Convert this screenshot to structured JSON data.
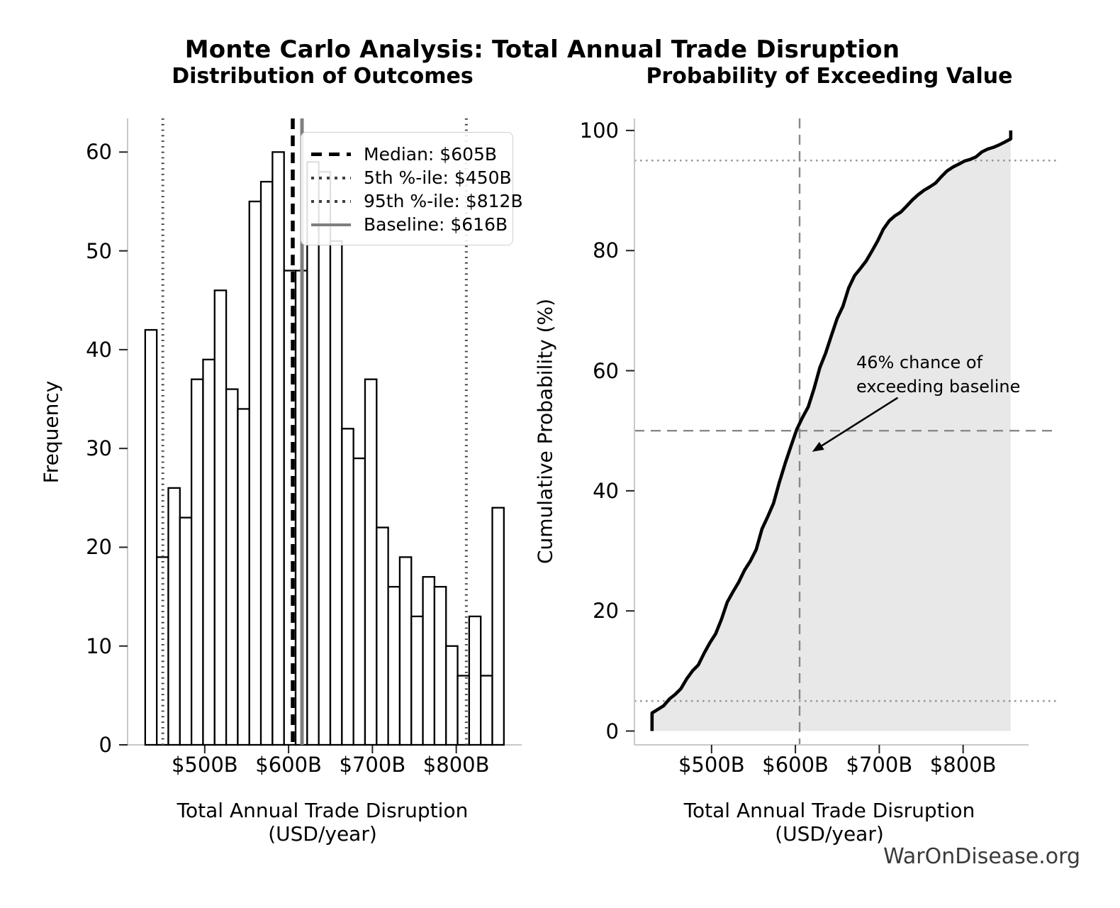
{
  "page": {
    "main_title": "Monte Carlo Analysis: Total Annual Trade Disruption",
    "watermark": "WarOnDisease.org"
  },
  "colors": {
    "bar_fill": "#ffffff",
    "bar_edge": "#000000",
    "curve": "#000000",
    "fill_under_curve": "#e8e8e8",
    "guide_gray": "#888888",
    "dotted_light": "#9a9a9a",
    "dotted_dark": "#3f3f3f",
    "baseline_gray": "#7f7f7f",
    "spine": "#c8c8c8",
    "tick": "#222222",
    "watermark": "#3a3a3a"
  },
  "chart_data": [
    {
      "type": "bar",
      "title": "Distribution of Outcomes",
      "xlabel": "Total Annual Trade Disruption (USD/year)",
      "ylabel": "Frequency",
      "xlim": [
        408,
        873
      ],
      "ylim": [
        0,
        63.4
      ],
      "grid": false,
      "xticks": {
        "values": [
          500,
          600,
          700,
          800
        ],
        "labels": [
          "$500B",
          "$600B",
          "$700B",
          "$800B"
        ]
      },
      "yticks": {
        "values": [
          0,
          10,
          20,
          30,
          40,
          50,
          60
        ],
        "labels": [
          "0",
          "10",
          "20",
          "30",
          "40",
          "50",
          "60"
        ]
      },
      "histogram": {
        "bin_start": 429,
        "bin_width": 13.8,
        "n_samples": 1000,
        "counts": [
          42,
          19,
          26,
          23,
          37,
          39,
          46,
          36,
          34,
          55,
          57,
          60,
          48,
          48,
          59,
          58,
          51,
          32,
          29,
          37,
          22,
          16,
          19,
          13,
          17,
          16,
          10,
          7,
          13,
          7,
          24
        ]
      },
      "ref_lines": [
        {
          "id": "median",
          "value": 605,
          "style": "dashed-black",
          "label": "Median: $605B"
        },
        {
          "id": "p5",
          "value": 450,
          "style": "dotted-gray",
          "label": "5th %-ile: $450B"
        },
        {
          "id": "p95",
          "value": 812,
          "style": "dotted-gray",
          "label": "95th %-ile: $812B"
        },
        {
          "id": "baseline",
          "value": 616,
          "style": "solid-gray",
          "label": "Baseline: $616B"
        }
      ],
      "legend_position": "upper right"
    },
    {
      "type": "line",
      "title": "Probability of Exceeding Value",
      "xlabel": "Total Annual Trade Disruption (USD/year)",
      "ylabel": "Cumulative Probability (%)",
      "xlim": [
        408,
        873
      ],
      "ylim": [
        -2.3,
        102
      ],
      "grid": false,
      "xticks": {
        "values": [
          500,
          600,
          700,
          800
        ],
        "labels": [
          "$500B",
          "$600B",
          "$700B",
          "$800B"
        ]
      },
      "yticks": {
        "values": [
          0,
          20,
          40,
          60,
          80,
          100
        ],
        "labels": [
          "0",
          "20",
          "40",
          "60",
          "80",
          "100"
        ]
      },
      "cdf": {
        "x_start": 429,
        "x_end": 856.8,
        "initial_jump_pct": 3.0,
        "edge_x": [
          442.8,
          456.6,
          470.4,
          484.2,
          498.0,
          511.8,
          525.6,
          539.4,
          553.2,
          567.0,
          580.8,
          594.6,
          608.4,
          622.2,
          636.0,
          649.8,
          663.6,
          677.4,
          691.2,
          705.0,
          718.8,
          732.6,
          746.4,
          760.2,
          774.0,
          787.8,
          801.6,
          815.4,
          829.2,
          843.0,
          856.8
        ],
        "cumulative_pct": [
          4.2,
          6.1,
          8.7,
          11.0,
          14.7,
          18.6,
          23.2,
          26.8,
          30.2,
          35.7,
          41.4,
          47.4,
          52.2,
          57.0,
          62.9,
          68.7,
          73.8,
          77.0,
          79.9,
          83.6,
          85.8,
          87.4,
          89.3,
          90.6,
          92.3,
          93.9,
          94.9,
          95.6,
          96.9,
          97.6,
          100.0
        ]
      },
      "guides": {
        "dotted_horizontal_pct": [
          5,
          95
        ],
        "dashed_horizontal_pct": 50,
        "dashed_vertical_value": 605
      },
      "annotation": {
        "text": "46% chance of\nexceeding baseline",
        "arrow_tip": {
          "value": 620,
          "pct": 46.5
        },
        "arrow_tail": {
          "value": 722,
          "pct": 55.5
        }
      }
    }
  ]
}
